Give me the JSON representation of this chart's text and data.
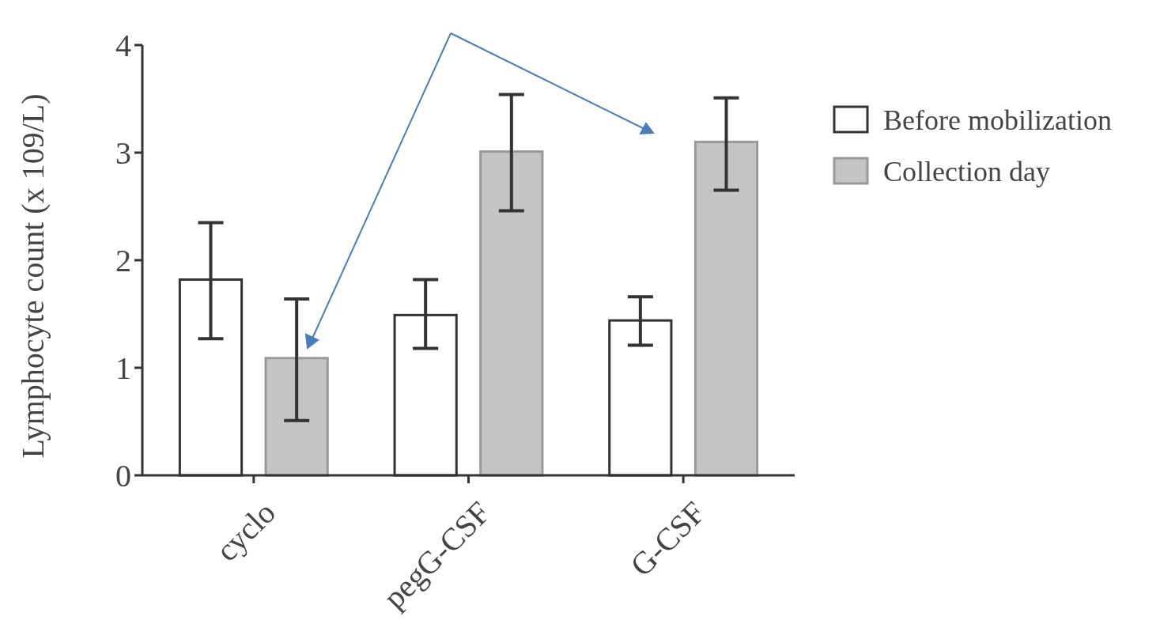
{
  "chart_data": {
    "type": "bar",
    "ylabel": "Lymphocyte count (x 109/L)",
    "categories": [
      "cyclo",
      "pegG-CSF",
      "G-CSF"
    ],
    "series": [
      {
        "name": "Before mobilization",
        "color": "#ffffff",
        "values": [
          1.82,
          1.49,
          1.44
        ],
        "errors": [
          [
            1.27,
            2.35
          ],
          [
            1.18,
            1.82
          ],
          [
            1.21,
            1.66
          ]
        ]
      },
      {
        "name": "Collection day",
        "color": "#c4c4c4",
        "values": [
          1.09,
          3.01,
          3.1
        ],
        "errors": [
          [
            0.51,
            1.64
          ],
          [
            2.46,
            3.54
          ],
          [
            2.65,
            3.51
          ]
        ]
      }
    ],
    "ylim": [
      0,
      4
    ],
    "yticks": [
      0,
      1,
      2,
      3,
      4
    ],
    "grid": false,
    "legend": "top right"
  }
}
